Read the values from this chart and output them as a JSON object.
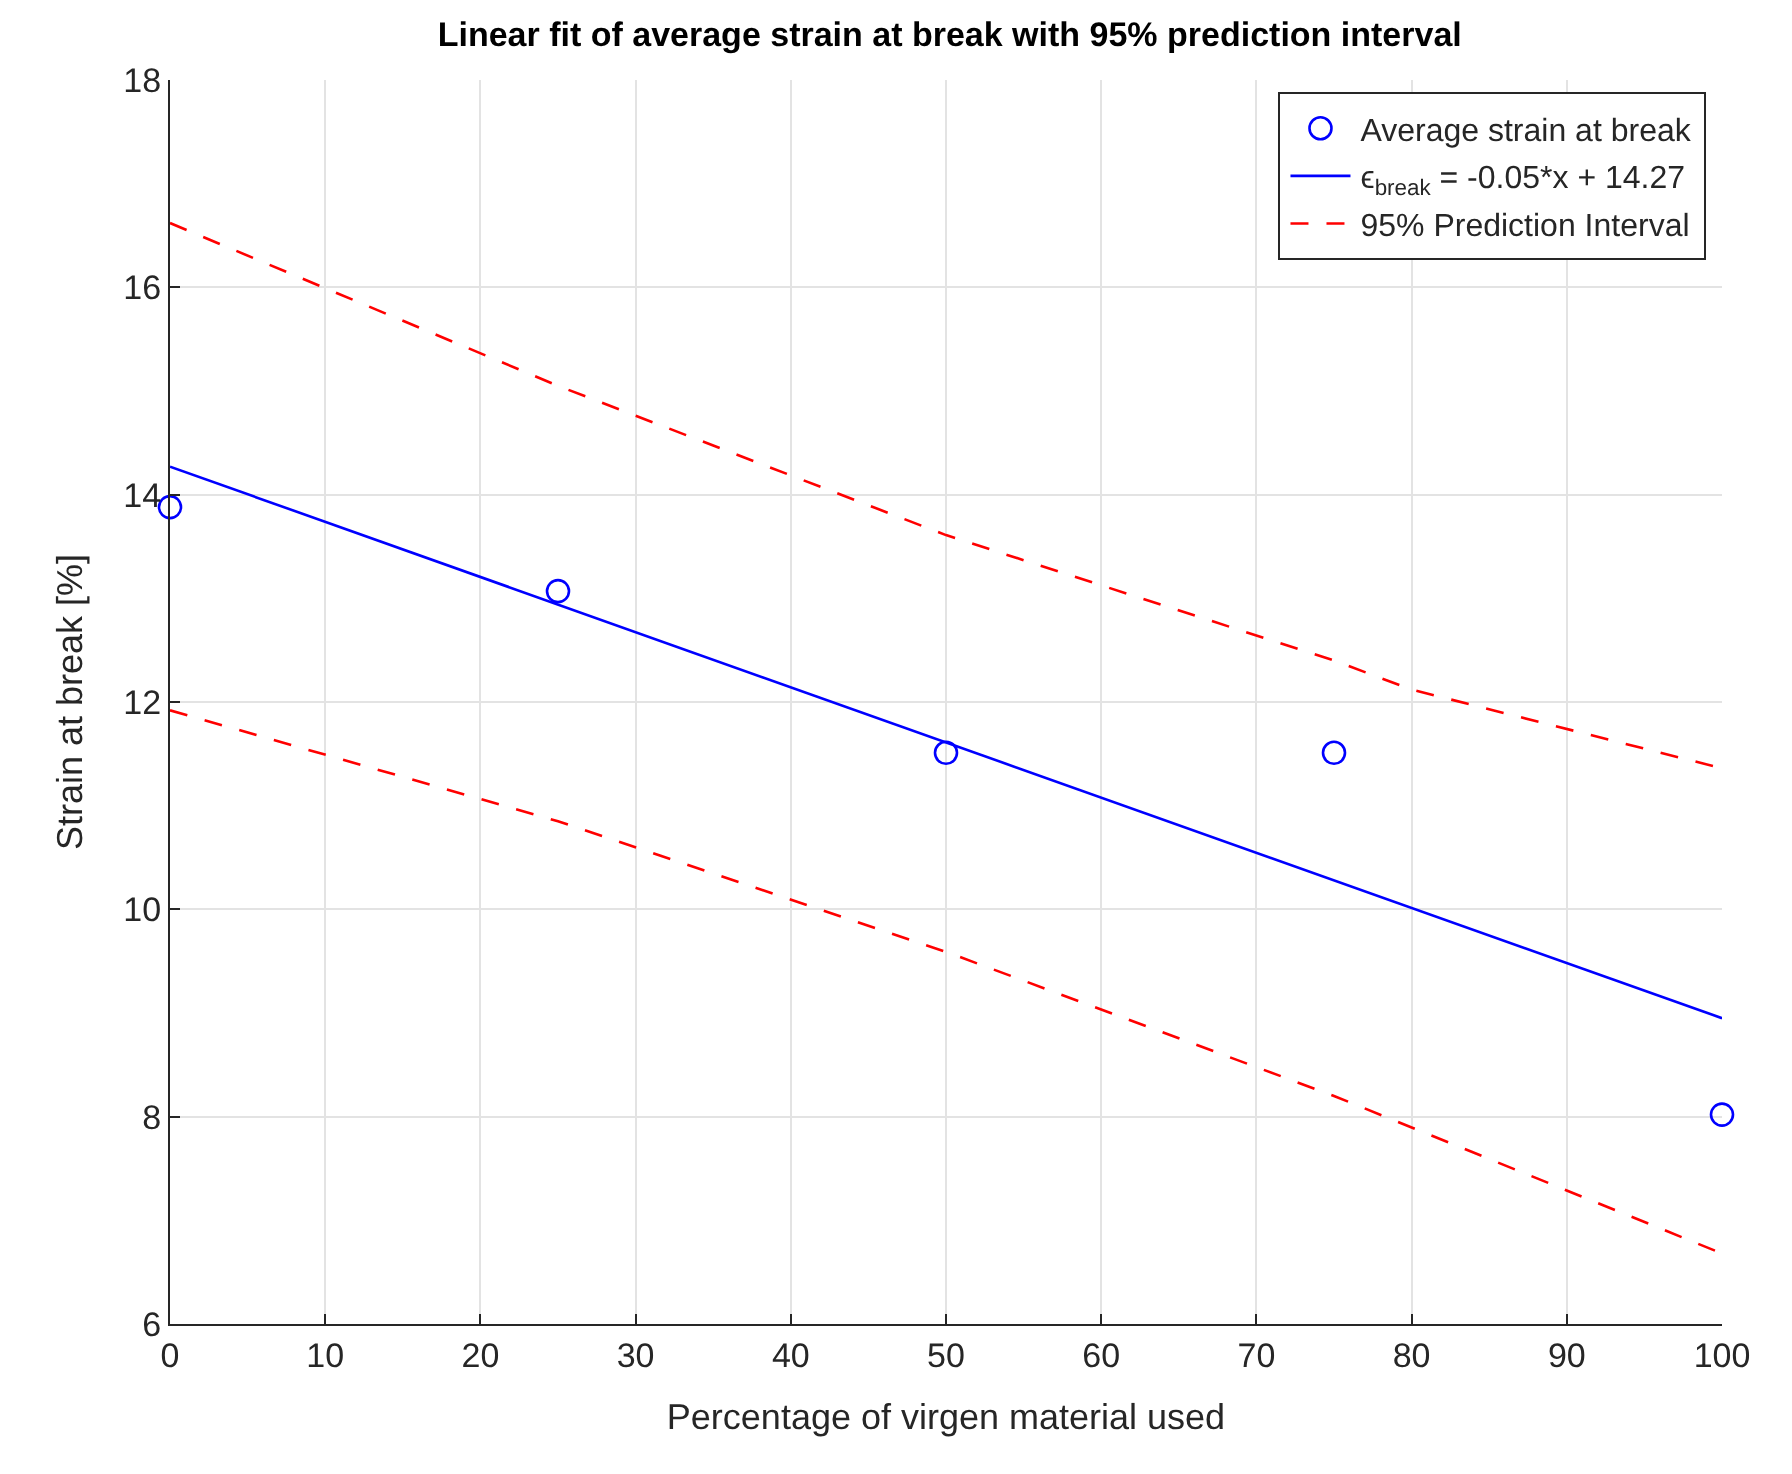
{
  "chart_data": {
    "type": "line",
    "title": "Linear fit of average strain at break with 95% prediction interval",
    "xlabel": "Percentage of virgen material used",
    "ylabel": "Strain at break [%]",
    "xlim": [
      0,
      100
    ],
    "xticks": [
      0,
      10,
      20,
      30,
      40,
      50,
      60,
      70,
      80,
      90,
      100
    ],
    "ylim": [
      6,
      18
    ],
    "yticks": [
      6,
      8,
      10,
      12,
      14,
      16,
      18
    ],
    "grid": true,
    "legend": "top right",
    "series": [
      {
        "name": "Average strain at break",
        "type": "scatter",
        "marker": "circle",
        "color": "#0000ff",
        "x": [
          0,
          25,
          50,
          75,
          100
        ],
        "values": [
          13.88,
          13.07,
          11.51,
          11.51,
          8.02
        ]
      },
      {
        "name": "ϵ$_{break}$ = -0.05*x + 14.27",
        "marker": "none",
        "line_style": "solid",
        "color": "#0000ff",
        "x": [
          0,
          100
        ],
        "values": [
          14.27,
          8.95
        ]
      },
      {
        "name": "95% Prediction Interval",
        "marker": "none",
        "line_style": "dashed",
        "color": "#ff0000",
        "x": [
          0,
          25,
          50,
          75,
          80,
          100
        ],
        "values": [
          16.62,
          15.05,
          13.61,
          12.4,
          12.12,
          11.36
        ]
      },
      {
        "marker": "none",
        "line_style": "dashed",
        "color": "#ff0000",
        "x": [
          0,
          25,
          50,
          75,
          100
        ],
        "values": [
          11.92,
          10.85,
          9.59,
          8.2,
          6.68
        ]
      }
    ]
  }
}
